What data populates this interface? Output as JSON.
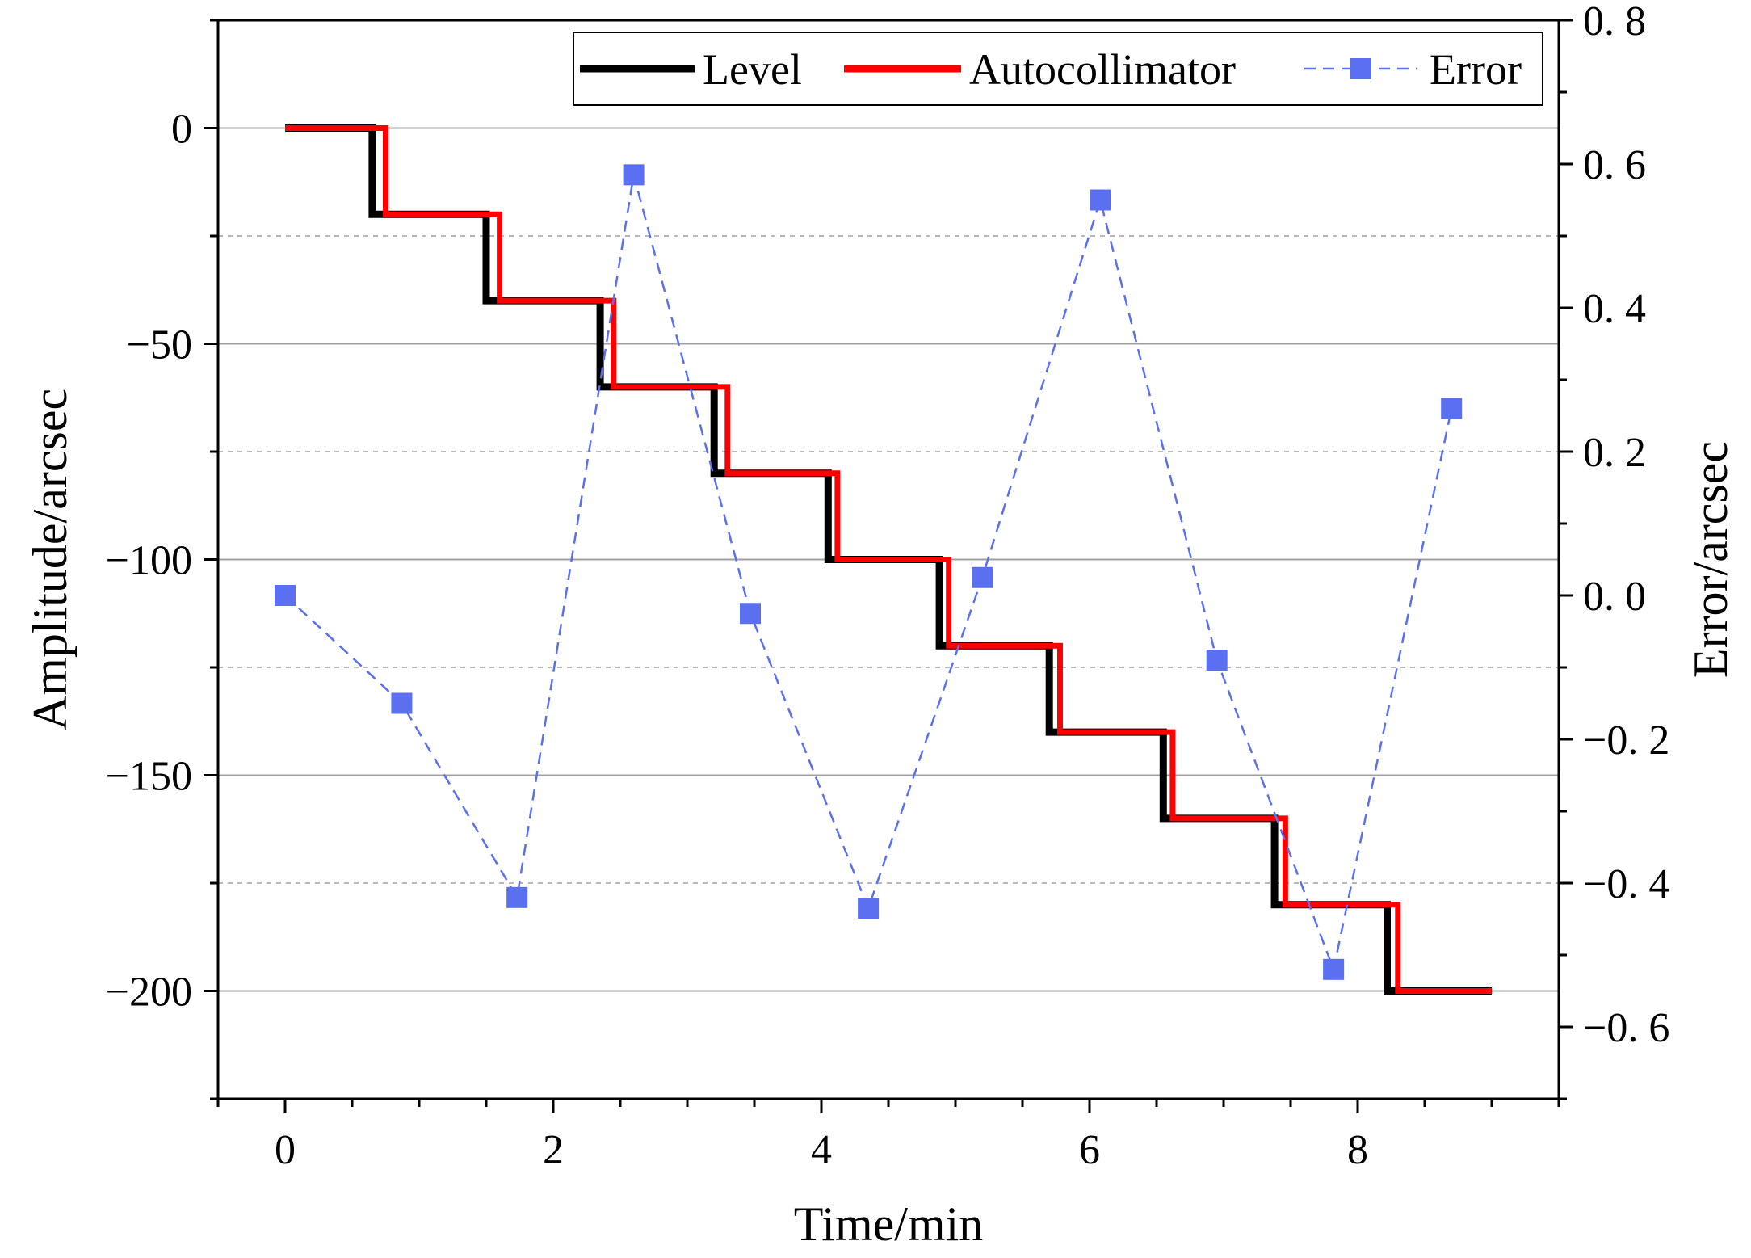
{
  "chart_data": {
    "type": "line",
    "xlabel": "Time/min",
    "ylabel": "Amplitude/arcsec",
    "y2label": "Error/arcsec",
    "xlim": [
      -0.5,
      9.5
    ],
    "ylim": [
      -225,
      25
    ],
    "y2lim": [
      -0.7,
      0.8
    ],
    "x_ticks": [
      0,
      2,
      4,
      6,
      8
    ],
    "x_tick_labels": [
      "0",
      "2",
      "4",
      "6",
      "8"
    ],
    "y_ticks": [
      0,
      -50,
      -100,
      -150,
      -200
    ],
    "y_tick_labels": [
      "0",
      "−50",
      "−100",
      "−150",
      "−200"
    ],
    "y_minor_ticks": [
      -25,
      -75,
      -125,
      -175
    ],
    "y2_ticks": [
      0.8,
      0.6,
      0.4,
      0.2,
      0.0,
      -0.2,
      -0.4,
      -0.6
    ],
    "y2_tick_labels": [
      "0. 8",
      "0. 6",
      "0. 4",
      "0. 2",
      "0. 0",
      "−0. 2",
      "−0. 4",
      "−0. 6"
    ],
    "legend": {
      "position": "top-right",
      "entries": [
        "Level",
        "Autocollimator",
        "Error"
      ]
    },
    "series": [
      {
        "name": "Level",
        "axis": "left",
        "color": "#000000",
        "style": "solid",
        "step_times": [
          0,
          0.65,
          1.5,
          2.35,
          3.2,
          4.05,
          4.88,
          5.7,
          6.55,
          7.38,
          8.22,
          9.0
        ],
        "levels": [
          0,
          -20,
          -40,
          -60,
          -80,
          -100,
          -120,
          -140,
          -160,
          -180,
          -200
        ]
      },
      {
        "name": "Autocollimator",
        "axis": "left",
        "color": "#ff0000",
        "style": "solid",
        "step_times": [
          0,
          0.75,
          1.6,
          2.45,
          3.3,
          4.12,
          4.95,
          5.78,
          6.62,
          7.46,
          8.3,
          9.0
        ],
        "levels": [
          0,
          -20,
          -40,
          -60,
          -80,
          -100,
          -120,
          -140,
          -160,
          -180,
          -200
        ]
      },
      {
        "name": "Error",
        "axis": "right",
        "color": "#5a70f0",
        "style": "dashed-square",
        "x": [
          0,
          0.87,
          1.73,
          2.6,
          3.47,
          4.35,
          5.2,
          6.08,
          6.95,
          7.82,
          8.7
        ],
        "y": [
          0.0,
          -0.15,
          -0.42,
          0.585,
          -0.025,
          -0.435,
          0.025,
          0.55,
          -0.09,
          -0.52,
          0.26
        ]
      }
    ]
  }
}
